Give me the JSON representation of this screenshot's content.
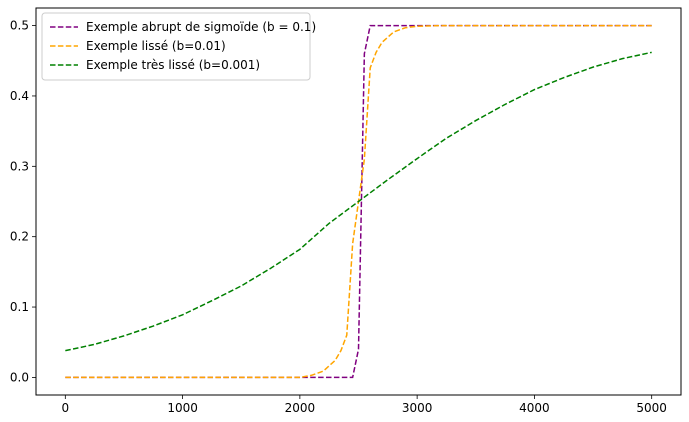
{
  "chart_data": {
    "type": "line",
    "title": "",
    "xlabel": "",
    "ylabel": "",
    "xlim": [
      -250,
      5250
    ],
    "ylim": [
      -0.025,
      0.525
    ],
    "x_ticks": [
      0,
      1000,
      2000,
      3000,
      4000,
      5000
    ],
    "x_tick_labels": [
      "0",
      "1000",
      "2000",
      "3000",
      "4000",
      "5000"
    ],
    "y_ticks": [
      0.0,
      0.1,
      0.2,
      0.3,
      0.4,
      0.5
    ],
    "y_tick_labels": [
      "0.0",
      "0.1",
      "0.2",
      "0.3",
      "0.4",
      "0.5"
    ],
    "grid": false,
    "legend_position": "top-left",
    "series": [
      {
        "name": "Exemple abrupt de sigmoïde (b = 0.1)",
        "color": "#800080",
        "linestyle": "dashed",
        "x": [
          0,
          500,
          1000,
          1500,
          2000,
          2300,
          2400,
          2450,
          2500,
          2550,
          2600,
          3000,
          4000,
          5000
        ],
        "y": [
          0.0,
          0.0,
          0.0,
          0.0,
          0.0,
          0.0,
          0.0,
          0.0,
          0.04,
          0.46,
          0.5,
          0.5,
          0.5,
          0.5
        ]
      },
      {
        "name": "Exemple lissé (b=0.01)",
        "color": "#ffa500",
        "linestyle": "dashed",
        "x": [
          0,
          1000,
          1800,
          2000,
          2100,
          2200,
          2300,
          2350,
          2400,
          2450,
          2500,
          2550,
          2600,
          2650,
          2700,
          2800,
          2900,
          3000,
          3200,
          4000,
          5000
        ],
        "y": [
          0.0,
          0.0,
          0.0,
          0.0,
          0.003,
          0.009,
          0.024,
          0.038,
          0.06,
          0.19,
          0.25,
          0.31,
          0.44,
          0.462,
          0.476,
          0.491,
          0.497,
          0.499,
          0.5,
          0.5,
          0.5
        ]
      },
      {
        "name": "Exemple très lissé (b=0.001)",
        "color": "#008000",
        "linestyle": "dashed",
        "x": [
          0,
          250,
          500,
          750,
          1000,
          1250,
          1500,
          1750,
          2000,
          2250,
          2500,
          2750,
          3000,
          3250,
          3500,
          3750,
          4000,
          4250,
          4500,
          4750,
          5000
        ],
        "y": [
          0.038,
          0.047,
          0.059,
          0.073,
          0.089,
          0.109,
          0.13,
          0.155,
          0.182,
          0.219,
          0.25,
          0.281,
          0.311,
          0.34,
          0.365,
          0.388,
          0.409,
          0.426,
          0.441,
          0.453,
          0.462
        ]
      }
    ]
  }
}
